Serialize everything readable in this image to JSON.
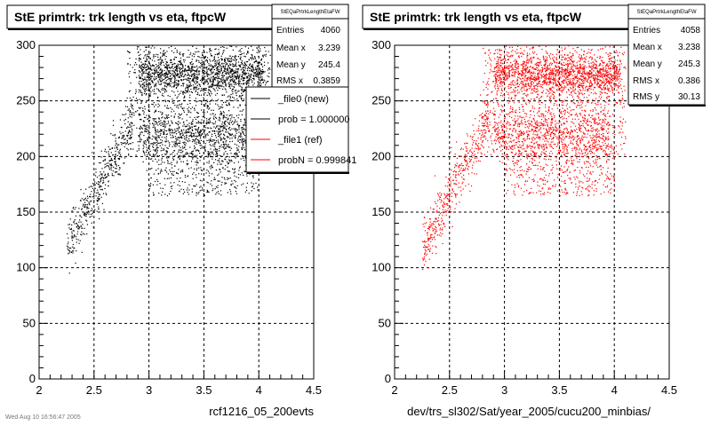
{
  "chart_data": [
    {
      "type": "scatter",
      "title": "StE primtrk: trk length vs eta, ftpcW",
      "xlabel": "rcf1216_05_200evts",
      "ylabel": "",
      "xlim": [
        2,
        4.5
      ],
      "ylim": [
        0,
        300
      ],
      "x_ticks": [
        "2",
        "2.5",
        "3",
        "3.5",
        "4",
        "4.5"
      ],
      "y_ticks": [
        "0",
        "50",
        "100",
        "150",
        "200",
        "250",
        "300"
      ],
      "grid": true,
      "marker_color": "#000000",
      "stats": {
        "name": "StEQaPrtrkLengthEtaFW",
        "rows": [
          {
            "label": "Entries",
            "value": "4060"
          },
          {
            "label": "Mean x",
            "value": "3.239"
          },
          {
            "label": "Mean y",
            "value": "245.4"
          },
          {
            "label": "RMS x",
            "value": "0.3859"
          }
        ]
      },
      "legend": {
        "entries": [
          {
            "label": "_file0 (new)",
            "color": "#000000"
          },
          {
            "label": "prob = 1.000000",
            "color": "#000000"
          },
          {
            "label": "_file1 (ref)",
            "color": "#ff0000"
          },
          {
            "label": "probN = 0.999841",
            "color": "#ff0000"
          }
        ]
      },
      "footer": "Wed Aug 10 16:56:47 2005",
      "n_points_approx": 4060
    },
    {
      "type": "scatter",
      "title": "StE primtrk: trk length vs eta, ftpcW",
      "xlabel": "dev/trs_sl302/Sat/year_2005/cucu200_minbias/",
      "ylabel": "",
      "xlim": [
        2,
        4.5
      ],
      "ylim": [
        0,
        300
      ],
      "x_ticks": [
        "2",
        "2.5",
        "3",
        "3.5",
        "4",
        "4.5"
      ],
      "y_ticks": [
        "0",
        "50",
        "100",
        "150",
        "200",
        "250",
        "300"
      ],
      "grid": true,
      "marker_color": "#ff0000",
      "stats": {
        "name": "StEQaPrtrkLengthEtaFW",
        "rows": [
          {
            "label": "Entries",
            "value": "4058"
          },
          {
            "label": "Mean x",
            "value": "3.238"
          },
          {
            "label": "Mean y",
            "value": "245.3"
          },
          {
            "label": "RMS x",
            "value": "0.386"
          },
          {
            "label": "RMS y",
            "value": "30.13"
          }
        ]
      },
      "n_points_approx": 4058
    }
  ]
}
